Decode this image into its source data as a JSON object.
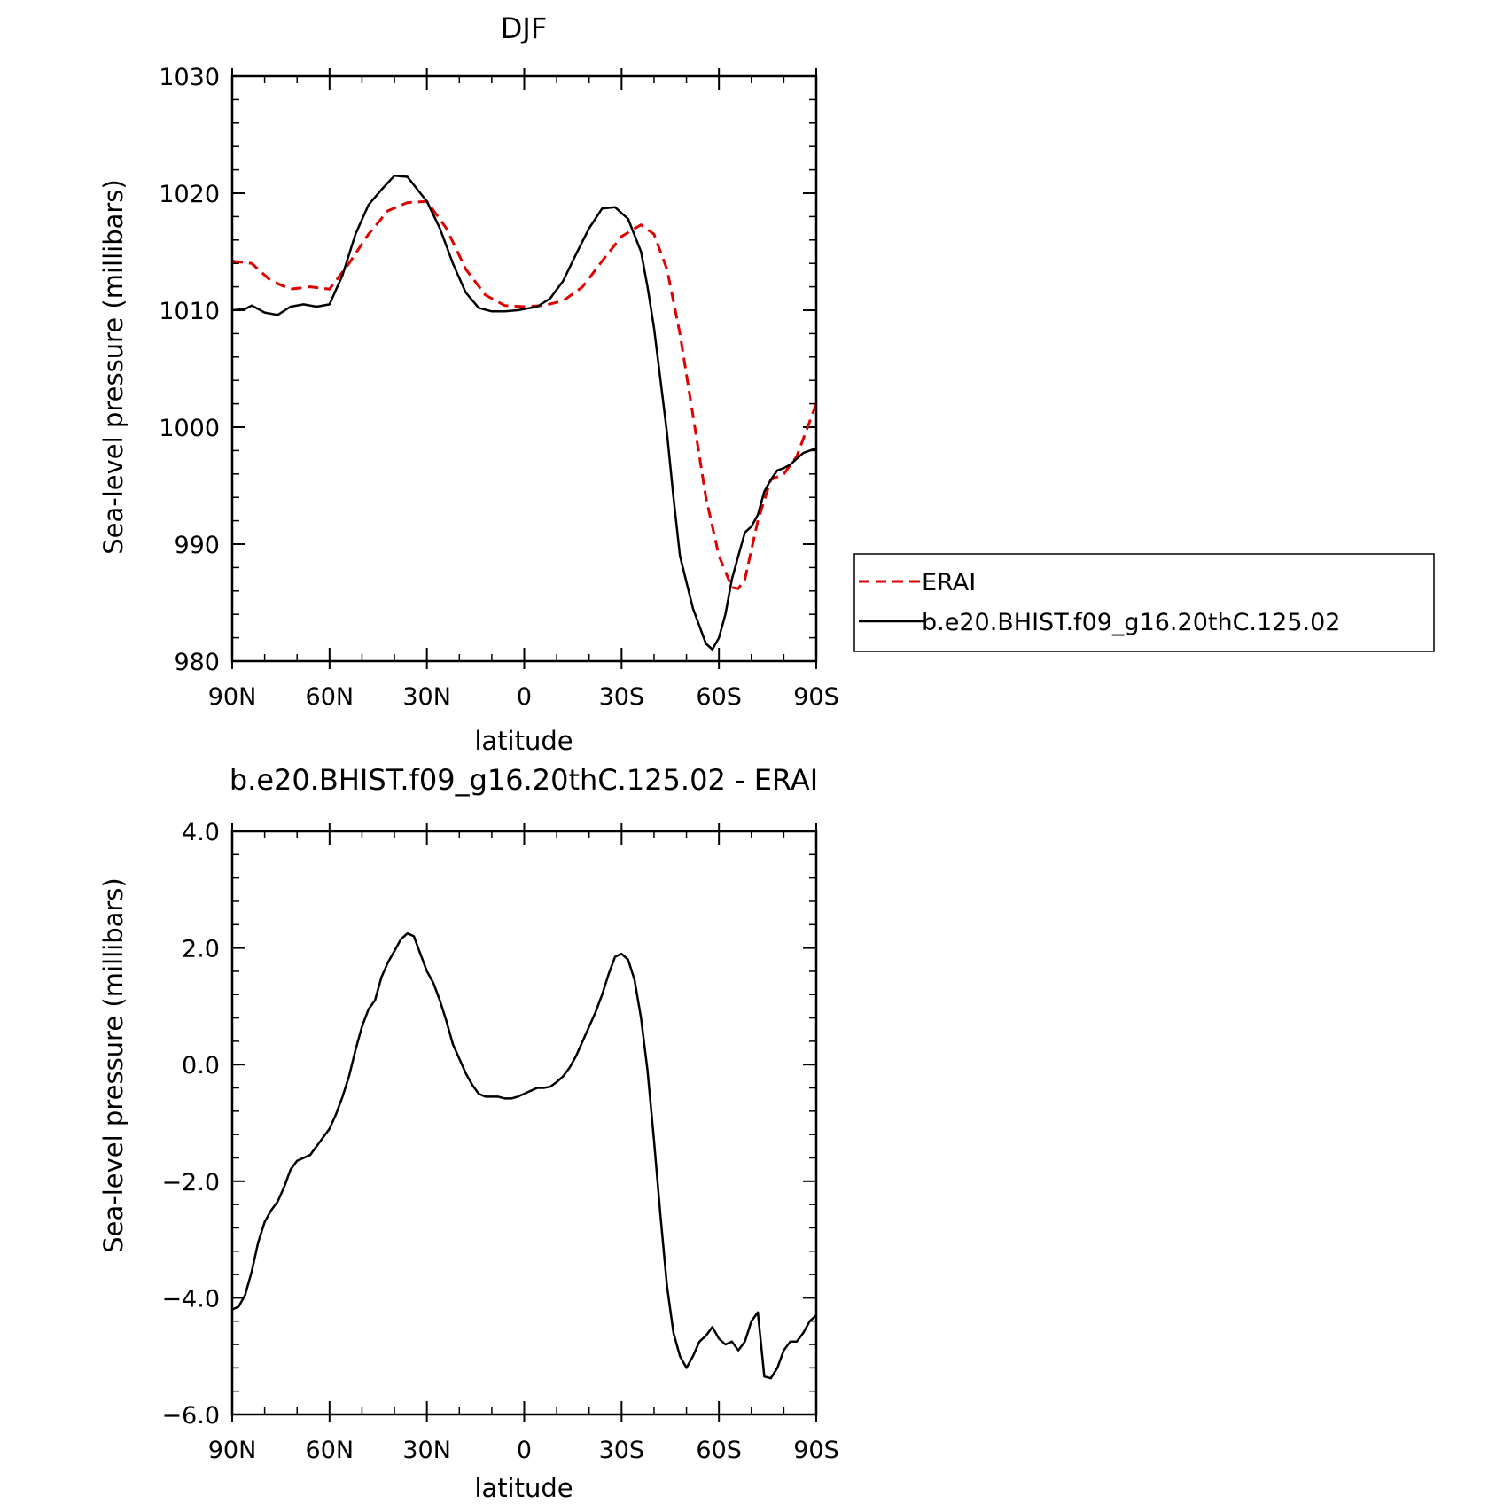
{
  "chart_data": [
    {
      "type": "line",
      "title": "DJF",
      "xlabel": "latitude",
      "ylabel": "Sea-level pressure (millibars)",
      "xlim": [
        90,
        -90
      ],
      "ylim": [
        980,
        1030
      ],
      "x_ticks": [
        90,
        60,
        30,
        0,
        -30,
        -60,
        -90
      ],
      "x_tick_labels": [
        "90N",
        "60N",
        "30N",
        "0",
        "30S",
        "60S",
        "90S"
      ],
      "y_ticks": [
        980,
        990,
        1000,
        1010,
        1020,
        1030
      ],
      "y_tick_labels": [
        "980",
        "990",
        "1000",
        "1010",
        "1020",
        "1030"
      ],
      "grid": false,
      "legend_position": "right",
      "series": [
        {
          "name": "ERAI",
          "color": "#e00000",
          "dash": "dashed",
          "x": [
            90,
            84,
            78,
            72,
            66,
            60,
            54,
            48,
            42,
            36,
            30,
            24,
            18,
            12,
            6,
            0,
            -6,
            -12,
            -18,
            -24,
            -30,
            -36,
            -40,
            -44,
            -48,
            -52,
            -56,
            -60,
            -64,
            -66,
            -68,
            -72,
            -76,
            -80,
            -84,
            -88,
            -90
          ],
          "y": [
            1014.2,
            1014,
            1012.5,
            1011.8,
            1012,
            1011.8,
            1014,
            1016.5,
            1018.5,
            1019.2,
            1019.3,
            1017,
            1013.5,
            1011.3,
            1010.4,
            1010.3,
            1010.4,
            1010.8,
            1012,
            1014.2,
            1016.3,
            1017.3,
            1016.5,
            1013.5,
            1008,
            1001,
            994,
            989,
            986.3,
            986.2,
            987,
            992,
            995.5,
            996,
            997.5,
            1000.5,
            1002
          ]
        },
        {
          "name": "b.e20.BHIST.f09_g16.20thC.125.02",
          "color": "#000000",
          "dash": "solid",
          "x": [
            90,
            86,
            84,
            80,
            76,
            72,
            68,
            64,
            60,
            56,
            52,
            48,
            44,
            40,
            36,
            32,
            30,
            26,
            22,
            18,
            14,
            10,
            6,
            2,
            0,
            -4,
            -8,
            -12,
            -16,
            -20,
            -24,
            -28,
            -32,
            -36,
            -38,
            -40,
            -42,
            -44,
            -46,
            -48,
            -52,
            -56,
            -58,
            -60,
            -62,
            -64,
            -66,
            -68,
            -70,
            -72,
            -74,
            -76,
            -78,
            -80,
            -82,
            -84,
            -86,
            -88,
            -90
          ],
          "y": [
            1010,
            1010.1,
            1010.4,
            1009.8,
            1009.6,
            1010.3,
            1010.5,
            1010.3,
            1010.5,
            1013,
            1016.5,
            1019,
            1020.3,
            1021.5,
            1021.4,
            1020,
            1019.3,
            1017,
            1014,
            1011.5,
            1010.2,
            1009.9,
            1009.9,
            1010,
            1010.1,
            1010.3,
            1011,
            1012.5,
            1014.8,
            1017,
            1018.7,
            1018.8,
            1017.8,
            1015,
            1012,
            1008.5,
            1004,
            999.5,
            994,
            989,
            984.5,
            981.5,
            981,
            982,
            984,
            987,
            989,
            991,
            991.5,
            992.5,
            994.5,
            995.5,
            996.3,
            996.5,
            996.8,
            997.3,
            997.8,
            998,
            998.2
          ]
        }
      ]
    },
    {
      "type": "line",
      "title": "b.e20.BHIST.f09_g16.20thC.125.02 - ERAI",
      "xlabel": "latitude",
      "ylabel": "Sea-level pressure (millibars)",
      "xlim": [
        90,
        -90
      ],
      "ylim": [
        -6.0,
        4.0
      ],
      "x_ticks": [
        90,
        60,
        30,
        0,
        -30,
        -60,
        -90
      ],
      "x_tick_labels": [
        "90N",
        "60N",
        "30N",
        "0",
        "30S",
        "60S",
        "90S"
      ],
      "y_ticks": [
        -6.0,
        -4.0,
        -2.0,
        0.0,
        2.0,
        4.0
      ],
      "y_tick_labels": [
        "−6.0",
        "−4.0",
        "−2.0",
        "0.0",
        "2.0",
        "4.0"
      ],
      "grid": false,
      "series": [
        {
          "color": "#000000",
          "dash": "solid",
          "x": [
            90,
            88,
            86,
            84,
            82,
            80,
            78,
            76,
            74,
            72,
            70,
            68,
            66,
            62,
            60,
            58,
            56,
            54,
            52,
            50,
            48,
            46,
            44,
            42,
            40,
            38,
            36,
            34,
            32,
            30,
            28,
            26,
            24,
            22,
            20,
            18,
            16,
            14,
            12,
            10,
            8,
            6,
            4,
            2,
            0,
            -2,
            -4,
            -6,
            -8,
            -10,
            -12,
            -14,
            -16,
            -18,
            -20,
            -22,
            -24,
            -26,
            -28,
            -30,
            -32,
            -34,
            -36,
            -38,
            -40,
            -42,
            -44,
            -46,
            -48,
            -50,
            -52,
            -54,
            -56,
            -58,
            -60,
            -62,
            -64,
            -66,
            -68,
            -70,
            -72,
            -74,
            -76,
            -78,
            -80,
            -82,
            -84,
            -86,
            -88,
            -90
          ],
          "y": [
            -4.2,
            -4.15,
            -3.95,
            -3.55,
            -3.05,
            -2.7,
            -2.5,
            -2.35,
            -2.1,
            -1.8,
            -1.65,
            -1.6,
            -1.55,
            -1.25,
            -1.1,
            -0.85,
            -0.55,
            -0.2,
            0.25,
            0.65,
            0.95,
            1.1,
            1.5,
            1.75,
            1.95,
            2.15,
            2.25,
            2.2,
            1.9,
            1.6,
            1.4,
            1.1,
            0.75,
            0.35,
            0.1,
            -0.15,
            -0.35,
            -0.5,
            -0.55,
            -0.55,
            -0.55,
            -0.58,
            -0.58,
            -0.55,
            -0.5,
            -0.45,
            -0.4,
            -0.4,
            -0.38,
            -0.3,
            -0.2,
            -0.05,
            0.15,
            0.4,
            0.65,
            0.9,
            1.2,
            1.55,
            1.85,
            1.9,
            1.8,
            1.45,
            0.8,
            -0.1,
            -1.3,
            -2.6,
            -3.8,
            -4.6,
            -5.0,
            -5.2,
            -5.0,
            -4.75,
            -4.65,
            -4.5,
            -4.7,
            -4.8,
            -4.75,
            -4.9,
            -4.75,
            -4.4,
            -4.25,
            -5.35,
            -5.38,
            -5.2,
            -4.9,
            -4.75,
            -4.75,
            -4.6,
            -4.4,
            -4.3
          ]
        }
      ]
    }
  ]
}
